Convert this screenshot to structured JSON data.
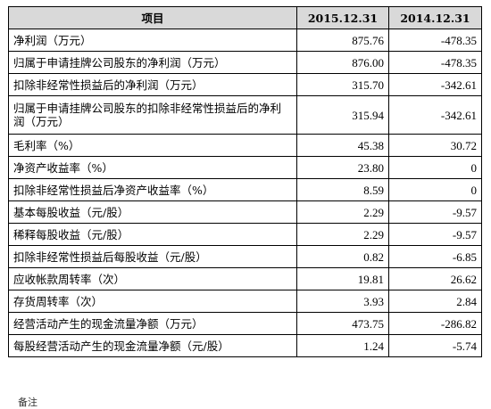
{
  "table": {
    "headers": [
      "项目",
      "2015.12.31",
      "2014.12.31"
    ],
    "rows": [
      {
        "label": "净利润（万元）",
        "v2015": "875.76",
        "v2014": "-478.35"
      },
      {
        "label": "归属于申请挂牌公司股东的净利润（万元）",
        "v2015": "876.00",
        "v2014": "-478.35"
      },
      {
        "label": "扣除非经常性损益后的净利润（万元）",
        "v2015": "315.70",
        "v2014": "-342.61"
      },
      {
        "label": "归属于申请挂牌公司股东的扣除非经常性损益后的净利润（万元）",
        "v2015": "315.94",
        "v2014": "-342.61"
      },
      {
        "label": "毛利率（%）",
        "v2015": "45.38",
        "v2014": "30.72"
      },
      {
        "label": "净资产收益率（%）",
        "v2015": "23.80",
        "v2014": "0"
      },
      {
        "label": "扣除非经常性损益后净资产收益率（%）",
        "v2015": "8.59",
        "v2014": "0"
      },
      {
        "label": "基本每股收益（元/股）",
        "v2015": "2.29",
        "v2014": "-9.57"
      },
      {
        "label": "稀释每股收益（元/股）",
        "v2015": "2.29",
        "v2014": "-9.57"
      },
      {
        "label": "扣除非经常性损益后每股收益（元/股）",
        "v2015": "0.82",
        "v2014": "-6.85"
      },
      {
        "label": "应收帐款周转率（次）",
        "v2015": "19.81",
        "v2014": "26.62"
      },
      {
        "label": "存货周转率（次）",
        "v2015": "3.93",
        "v2014": "2.84"
      },
      {
        "label": "经营活动产生的现金流量净额（万元）",
        "v2015": "473.75",
        "v2014": "-286.82"
      },
      {
        "label": "每股经营活动产生的现金流量净额（元/股）",
        "v2015": "1.24",
        "v2014": "-5.74"
      }
    ]
  },
  "footnote": "备注"
}
